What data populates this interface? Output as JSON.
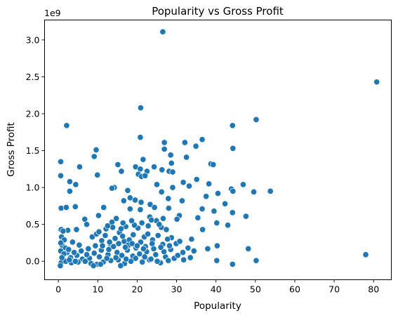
{
  "chart_data": {
    "type": "scatter",
    "title": "Popularity vs Gross Profit",
    "xlabel": "Popularity",
    "ylabel": "Gross Profit",
    "y_offset_text": "1e9",
    "xlim": [
      -3.5,
      84.5
    ],
    "ylim": [
      -0.25,
      3.27
    ],
    "x_ticks": [
      0,
      10,
      20,
      30,
      40,
      50,
      60,
      70,
      80
    ],
    "x_tick_labels": [
      "0",
      "10",
      "20",
      "30",
      "40",
      "50",
      "60",
      "70",
      "80"
    ],
    "y_ticks": [
      0.0,
      0.5,
      1.0,
      1.5,
      2.0,
      2.5,
      3.0
    ],
    "y_tick_labels": [
      "0.0",
      "0.5",
      "1.0",
      "1.5",
      "2.0",
      "2.5",
      "3.0"
    ],
    "y_unit_multiplier": 1000000000,
    "grid": false,
    "marker_color": "#1f77b4",
    "series": [
      {
        "points": [
          [
            26.5,
            3.11
          ],
          [
            80.8,
            2.43
          ],
          [
            20.9,
            2.08
          ],
          [
            50.2,
            1.92
          ],
          [
            44.2,
            1.84
          ],
          [
            2.1,
            1.84
          ],
          [
            20.8,
            1.68
          ],
          [
            36.5,
            1.65
          ],
          [
            26.9,
            1.61
          ],
          [
            32.1,
            1.61
          ],
          [
            34.9,
            1.56
          ],
          [
            44.3,
            1.53
          ],
          [
            9.6,
            1.51
          ],
          [
            26.9,
            1.52
          ],
          [
            28.5,
            1.44
          ],
          [
            9.1,
            1.42
          ],
          [
            32.5,
            1.41
          ],
          [
            21.5,
            1.38
          ],
          [
            0.6,
            1.35
          ],
          [
            38.7,
            1.32
          ],
          [
            28.7,
            1.33
          ],
          [
            39.3,
            1.31
          ],
          [
            15.1,
            1.31
          ],
          [
            19.6,
            1.28
          ],
          [
            24.3,
            1.28
          ],
          [
            5.4,
            1.28
          ],
          [
            16.0,
            1.22
          ],
          [
            26.3,
            1.24
          ],
          [
            20.8,
            1.25
          ],
          [
            22.5,
            1.22
          ],
          [
            28.1,
            1.22
          ],
          [
            29.0,
            1.21
          ],
          [
            0.6,
            1.16
          ],
          [
            9.9,
            1.17
          ],
          [
            20.3,
            1.18
          ],
          [
            21.1,
            1.15
          ],
          [
            22.0,
            1.16
          ],
          [
            35.1,
            1.11
          ],
          [
            4.4,
            1.04
          ],
          [
            2.9,
            1.08
          ],
          [
            25.0,
            1.04
          ],
          [
            38.2,
            1.05
          ],
          [
            46.9,
            1.04
          ],
          [
            31.7,
            1.07
          ],
          [
            14.2,
            1.0
          ],
          [
            13.6,
            0.99
          ],
          [
            17.6,
            0.96
          ],
          [
            29.0,
            1.0
          ],
          [
            33.2,
            1.02
          ],
          [
            43.9,
            0.98
          ],
          [
            49.6,
            0.94
          ],
          [
            53.8,
            0.95
          ],
          [
            2.9,
            0.95
          ],
          [
            40.5,
            0.92
          ],
          [
            44.3,
            0.95
          ],
          [
            26.2,
            0.94
          ],
          [
            18.2,
            0.86
          ],
          [
            19.5,
            0.83
          ],
          [
            21.0,
            0.8
          ],
          [
            16.6,
            0.82
          ],
          [
            27.9,
            0.85
          ],
          [
            31.4,
            0.82
          ],
          [
            37.5,
            0.88
          ],
          [
            42.3,
            0.78
          ],
          [
            23.3,
            0.77
          ],
          [
            11.5,
            0.73
          ],
          [
            4.3,
            0.74
          ],
          [
            0.7,
            0.72
          ],
          [
            2.0,
            0.73
          ],
          [
            18.2,
            0.71
          ],
          [
            20.8,
            0.7
          ],
          [
            24.4,
            0.73
          ],
          [
            28.0,
            0.72
          ],
          [
            36.5,
            0.71
          ],
          [
            39.5,
            0.68
          ],
          [
            44.2,
            0.66
          ],
          [
            47.6,
            0.61
          ],
          [
            30.7,
            0.62
          ],
          [
            10.2,
            0.62
          ],
          [
            6.7,
            0.57
          ],
          [
            14.7,
            0.58
          ],
          [
            23.2,
            0.6
          ],
          [
            30.1,
            0.57
          ],
          [
            35.4,
            0.59
          ],
          [
            40.2,
            0.52
          ],
          [
            43.0,
            0.49
          ],
          [
            24.9,
            0.55
          ],
          [
            13.6,
            0.53
          ],
          [
            7.2,
            0.5
          ],
          [
            0.7,
            0.43
          ],
          [
            2.4,
            0.42
          ],
          [
            4.6,
            0.43
          ],
          [
            17.1,
            0.47
          ],
          [
            20.2,
            0.45
          ],
          [
            26.1,
            0.46
          ],
          [
            36.6,
            0.43
          ],
          [
            33.8,
            0.3
          ],
          [
            32.9,
            0.18
          ],
          [
            37.9,
            0.17
          ],
          [
            48.2,
            0.17
          ],
          [
            40.3,
            0.21
          ],
          [
            78.0,
            0.09
          ],
          [
            40.2,
            0.01
          ],
          [
            50.2,
            0.01
          ],
          [
            44.2,
            -0.04
          ],
          [
            12.1,
            0.44
          ],
          [
            15.5,
            0.39
          ],
          [
            8.6,
            0.33
          ],
          [
            19.0,
            0.36
          ],
          [
            21.8,
            0.33
          ],
          [
            28.7,
            0.32
          ],
          [
            11.0,
            0.28
          ],
          [
            3.6,
            0.26
          ],
          [
            5.3,
            0.22
          ],
          [
            7.6,
            0.17
          ],
          [
            9.4,
            0.21
          ],
          [
            13.1,
            0.24
          ],
          [
            16.7,
            0.27
          ],
          [
            23.9,
            0.29
          ],
          [
            26.5,
            0.23
          ],
          [
            29.9,
            0.24
          ],
          [
            31.6,
            0.12
          ],
          [
            34.4,
            0.14
          ],
          [
            0.8,
            0.33
          ],
          [
            1.5,
            0.29
          ],
          [
            0.9,
            0.22
          ],
          [
            1.8,
            0.18
          ],
          [
            0.6,
            0.14
          ],
          [
            2.2,
            0.12
          ],
          [
            1.1,
            0.07
          ],
          [
            3.1,
            0.05
          ],
          [
            4.7,
            0.08
          ],
          [
            6.1,
            0.03
          ],
          [
            7.9,
            0.04
          ],
          [
            10.4,
            0.06
          ],
          [
            12.6,
            0.09
          ],
          [
            14.9,
            0.12
          ],
          [
            17.5,
            0.15
          ],
          [
            18.9,
            0.07
          ],
          [
            20.6,
            0.1
          ],
          [
            22.4,
            0.13
          ],
          [
            24.7,
            0.09
          ],
          [
            27.2,
            0.06
          ],
          [
            29.4,
            0.04
          ],
          [
            31.8,
            0.02
          ],
          [
            33.5,
            0.05
          ],
          [
            0.7,
            -0.02
          ],
          [
            1.9,
            0.0
          ],
          [
            3.3,
            -0.02
          ],
          [
            5.0,
            -0.01
          ],
          [
            6.8,
            0.0
          ],
          [
            8.3,
            -0.03
          ],
          [
            9.8,
            -0.04
          ],
          [
            11.4,
            -0.01
          ],
          [
            13.3,
            0.01
          ],
          [
            15.2,
            0.02
          ],
          [
            16.8,
            -0.03
          ],
          [
            18.4,
            0.0
          ],
          [
            21.3,
            -0.01
          ],
          [
            23.1,
            0.02
          ],
          [
            25.9,
            -0.02
          ],
          [
            0.5,
            -0.06
          ],
          [
            8.9,
            -0.06
          ],
          [
            10.7,
            -0.04
          ],
          [
            15.8,
            -0.06
          ],
          [
            1.2,
            0.41
          ],
          [
            9.7,
            0.37
          ],
          [
            14.4,
            0.31
          ],
          [
            16.3,
            0.34
          ],
          [
            18.0,
            0.29
          ],
          [
            20.9,
            0.26
          ],
          [
            22.7,
            0.37
          ],
          [
            25.3,
            0.35
          ],
          [
            27.7,
            0.3
          ],
          [
            12.8,
            0.16
          ],
          [
            14.0,
            0.2
          ],
          [
            17.8,
            0.22
          ],
          [
            19.7,
            0.18
          ],
          [
            22.1,
            0.2
          ],
          [
            24.2,
            0.17
          ],
          [
            26.8,
            0.13
          ],
          [
            28.5,
            0.16
          ],
          [
            30.3,
            0.08
          ],
          [
            11.9,
            0.35
          ],
          [
            13.8,
            0.46
          ],
          [
            15.9,
            0.44
          ],
          [
            19.3,
            0.49
          ],
          [
            22.8,
            0.48
          ],
          [
            25.6,
            0.5
          ],
          [
            27.4,
            0.43
          ],
          [
            0.6,
            0.25
          ],
          [
            1.4,
            0.1
          ],
          [
            2.6,
            0.16
          ],
          [
            4.0,
            0.12
          ],
          [
            5.8,
            0.14
          ],
          [
            7.2,
            0.09
          ],
          [
            9.1,
            0.11
          ],
          [
            10.9,
            0.15
          ],
          [
            12.3,
            0.04
          ],
          [
            14.6,
            0.05
          ],
          [
            16.1,
            0.08
          ],
          [
            17.2,
            0.03
          ],
          [
            19.6,
            0.04
          ],
          [
            21.9,
            0.06
          ],
          [
            23.5,
            0.03
          ],
          [
            25.1,
            0.0
          ],
          [
            27.9,
            0.01
          ],
          [
            0.9,
            0.05
          ],
          [
            2.8,
            0.02
          ],
          [
            4.3,
            0.0
          ],
          [
            11.2,
            0.21
          ],
          [
            13.0,
            0.26
          ],
          [
            15.3,
            0.24
          ],
          [
            17.0,
            0.19
          ],
          [
            18.7,
            0.24
          ],
          [
            20.0,
            0.21
          ],
          [
            21.6,
            0.17
          ],
          [
            23.8,
            0.24
          ],
          [
            26.0,
            0.19
          ],
          [
            28.2,
            0.21
          ],
          [
            30.8,
            0.27
          ],
          [
            10.3,
            0.4
          ],
          [
            12.5,
            0.48
          ],
          [
            16.4,
            0.52
          ],
          [
            18.6,
            0.55
          ],
          [
            21.2,
            0.52
          ],
          [
            23.6,
            0.56
          ],
          [
            26.6,
            0.58
          ]
        ]
      }
    ]
  }
}
